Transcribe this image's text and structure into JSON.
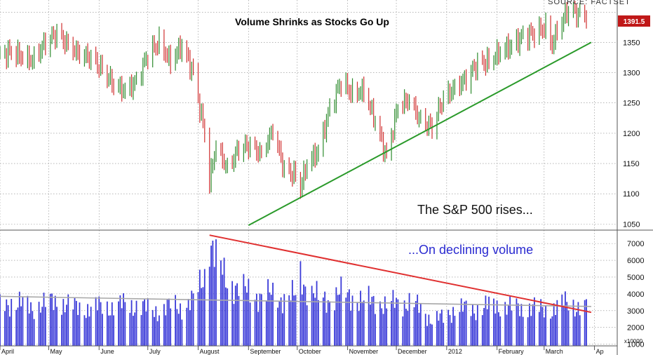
{
  "chart_data": {
    "type": "bar",
    "title": "Volume Shrinks as Stocks Go Up",
    "source": "SOURCE: FACTSET",
    "annotations": {
      "price": "The S&P 500 rises...",
      "volume": "...On declining volume"
    },
    "last_price_label": "1391.5",
    "volume_unit_label": "x10000",
    "colors": {
      "up": "#2e8b2e",
      "down": "#d03030",
      "volume": "#3a3ad8",
      "price_trend": "#2a9a2a",
      "volume_trend": "#e03030",
      "volume_avg": "#a8a8a8",
      "price_tag": "#c01818"
    },
    "price_panel": {
      "ylim": [
        1040,
        1420
      ],
      "yticks": [
        1050,
        1100,
        1150,
        1200,
        1250,
        1300,
        1350,
        1400
      ],
      "ytick_labels": [
        "1050",
        "1100",
        "1150",
        "1200",
        "1250",
        "1300",
        "1350",
        ""
      ],
      "series": {
        "date": [
          "2011-04-01",
          "2011-04-08",
          "2011-04-15",
          "2011-04-21",
          "2011-04-29",
          "2011-05-06",
          "2011-05-13",
          "2011-05-20",
          "2011-05-27",
          "2011-06-03",
          "2011-06-10",
          "2011-06-17",
          "2011-06-24",
          "2011-07-01",
          "2011-07-08",
          "2011-07-15",
          "2011-07-22",
          "2011-07-29",
          "2011-08-05",
          "2011-08-08",
          "2011-08-12",
          "2011-08-19",
          "2011-08-26",
          "2011-09-02",
          "2011-09-09",
          "2011-09-16",
          "2011-09-23",
          "2011-09-30",
          "2011-10-03",
          "2011-10-07",
          "2011-10-14",
          "2011-10-21",
          "2011-10-28",
          "2011-11-04",
          "2011-11-11",
          "2011-11-18",
          "2011-11-25",
          "2011-12-02",
          "2011-12-09",
          "2011-12-16",
          "2011-12-23",
          "2011-12-30",
          "2012-01-06",
          "2012-01-13",
          "2012-01-20",
          "2012-01-27",
          "2012-02-03",
          "2012-02-10",
          "2012-02-17",
          "2012-02-24",
          "2012-03-02",
          "2012-03-06",
          "2012-03-09",
          "2012-03-16",
          "2012-03-23"
        ],
        "close": [
          1328,
          1335,
          1325,
          1320,
          1350,
          1365,
          1345,
          1330,
          1325,
          1305,
          1280,
          1270,
          1285,
          1330,
          1350,
          1318,
          1345,
          1300,
          1200,
          1120,
          1180,
          1140,
          1175,
          1180,
          1165,
          1205,
          1140,
          1130,
          1110,
          1150,
          1170,
          1240,
          1285,
          1265,
          1270,
          1220,
          1160,
          1245,
          1255,
          1220,
          1210,
          1258,
          1275,
          1290,
          1315,
          1318,
          1335,
          1345,
          1360,
          1365,
          1375,
          1345,
          1370,
          1404,
          1395
        ]
      },
      "trendline": {
        "start": [
          "2011-09-01",
          1048
        ],
        "end": [
          "2012-03-30",
          1350
        ]
      }
    },
    "volume_panel": {
      "ylim": [
        900,
        7800
      ],
      "yticks": [
        1000,
        2000,
        3000,
        4000,
        5000,
        6000,
        7000
      ],
      "ytick_labels": [
        "1000",
        "2000",
        "3000",
        "4000",
        "5000",
        "6000",
        "7000"
      ],
      "series": {
        "date": [
          "2011-04-01",
          "2011-04-08",
          "2011-04-15",
          "2011-04-21",
          "2011-04-29",
          "2011-05-06",
          "2011-05-13",
          "2011-05-20",
          "2011-05-27",
          "2011-06-03",
          "2011-06-10",
          "2011-06-17",
          "2011-06-24",
          "2011-07-01",
          "2011-07-08",
          "2011-07-15",
          "2011-07-22",
          "2011-07-29",
          "2011-08-05",
          "2011-08-08",
          "2011-08-12",
          "2011-08-19",
          "2011-08-26",
          "2011-09-02",
          "2011-09-09",
          "2011-09-16",
          "2011-09-23",
          "2011-09-30",
          "2011-10-03",
          "2011-10-07",
          "2011-10-14",
          "2011-10-21",
          "2011-10-28",
          "2011-11-04",
          "2011-11-11",
          "2011-11-18",
          "2011-11-25",
          "2011-12-02",
          "2011-12-09",
          "2011-12-16",
          "2011-12-23",
          "2011-12-30",
          "2012-01-06",
          "2012-01-13",
          "2012-01-20",
          "2012-01-27",
          "2012-02-03",
          "2012-02-10",
          "2012-02-17",
          "2012-02-24",
          "2012-03-02",
          "2012-03-06",
          "2012-03-09",
          "2012-03-16",
          "2012-03-23"
        ],
        "values": [
          3300,
          3500,
          3400,
          3200,
          3400,
          3600,
          3300,
          3200,
          3100,
          3300,
          3200,
          3400,
          3300,
          3100,
          3000,
          3300,
          3200,
          3600,
          5200,
          7400,
          6000,
          4800,
          4300,
          4100,
          3800,
          4000,
          3700,
          3900,
          5200,
          4300,
          3700,
          3700,
          4000,
          3900,
          3500,
          3700,
          3200,
          3600,
          3400,
          3200,
          2400,
          2600,
          3100,
          3100,
          3100,
          3300,
          3300,
          3200,
          3100,
          3200,
          3000,
          3100,
          3300,
          3500,
          3200
        ]
      },
      "trendline": {
        "start": [
          "2011-08-08",
          7500
        ],
        "end": [
          "2012-03-30",
          2900
        ]
      },
      "average_line": {
        "start": [
          "2011-04-01",
          3850
        ],
        "end": [
          "2012-03-30",
          3250
        ]
      }
    },
    "x_axis": {
      "range": [
        "2011-04-01",
        "2012-04-15"
      ],
      "month_labels": [
        {
          "date": "2011-04-01",
          "label": "April"
        },
        {
          "date": "2011-05-01",
          "label": "May"
        },
        {
          "date": "2011-06-01",
          "label": "June"
        },
        {
          "date": "2011-07-01",
          "label": "July"
        },
        {
          "date": "2011-08-01",
          "label": "August"
        },
        {
          "date": "2011-09-01",
          "label": "September"
        },
        {
          "date": "2011-10-01",
          "label": "October"
        },
        {
          "date": "2011-11-01",
          "label": "November"
        },
        {
          "date": "2011-12-01",
          "label": "December"
        },
        {
          "date": "2012-01-01",
          "label": "2012"
        },
        {
          "date": "2012-02-01",
          "label": "February"
        },
        {
          "date": "2012-03-01",
          "label": "March"
        },
        {
          "date": "2012-04-01",
          "label": "Ap"
        }
      ]
    }
  }
}
